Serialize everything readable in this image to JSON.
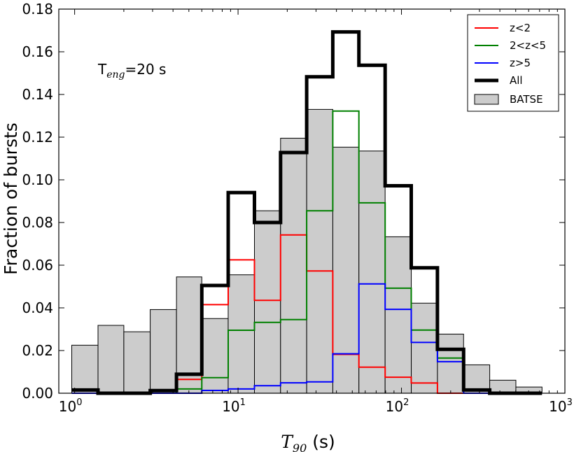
{
  "chart_data": {
    "type": "histogram",
    "xscale": "log",
    "xlim": [
      0.8,
      1000
    ],
    "ylim": [
      0,
      0.18
    ],
    "yticks": [
      "0.00",
      "0.02",
      "0.04",
      "0.06",
      "0.08",
      "0.10",
      "0.12",
      "0.14",
      "0.16",
      "0.18"
    ],
    "xtick_base": "10",
    "xtick_exps": [
      "0",
      "1",
      "2",
      "3"
    ],
    "xlabel": {
      "symbol": "T",
      "sub": "90",
      "unit": "(s)"
    },
    "ylabel": "Fraction of bursts",
    "annotation": {
      "T": "T",
      "sub": "eng",
      "rest": "=20 s"
    },
    "legend_position": "top-right",
    "bin_edges": [
      0.96,
      1.39,
      2.0,
      2.9,
      4.2,
      6.0,
      8.7,
      12.6,
      18.2,
      26.3,
      38.0,
      54.9,
      79.4,
      114.8,
      166.0,
      239.9,
      346.7,
      501.2,
      724.4
    ],
    "batse": {
      "name": "BATSE",
      "color": "#cccccc",
      "values": [
        0.0225,
        0.0318,
        0.0288,
        0.0392,
        0.0545,
        0.035,
        0.0555,
        0.0855,
        0.1195,
        0.133,
        0.1153,
        0.1135,
        0.0733,
        0.0422,
        0.0277,
        0.0133,
        0.0061,
        0.0029
      ]
    },
    "series": [
      {
        "name": "z<2",
        "color": "#ff0000",
        "width": 2,
        "values": [
          0.0,
          0.0,
          0.0,
          0.0,
          0.0065,
          0.0415,
          0.0625,
          0.0435,
          0.0742,
          0.0573,
          0.0182,
          0.0122,
          0.0075,
          0.0048,
          0.0,
          0.0,
          0.0,
          0.0
        ]
      },
      {
        "name": "2<z<5",
        "color": "#008000",
        "width": 2,
        "values": [
          0.0,
          0.0,
          0.0,
          0.0,
          0.002,
          0.0073,
          0.0295,
          0.0332,
          0.0345,
          0.0855,
          0.1322,
          0.0892,
          0.0492,
          0.0296,
          0.0165,
          0.0,
          0.0,
          0.0
        ]
      },
      {
        "name": "z>5",
        "color": "#0000ff",
        "width": 2,
        "values": [
          0.0,
          0.0,
          0.0,
          0.0,
          0.0,
          0.0013,
          0.002,
          0.0035,
          0.0049,
          0.0053,
          0.0185,
          0.0512,
          0.0393,
          0.0238,
          0.0148,
          0.0,
          0.0,
          0.0
        ]
      },
      {
        "name": "All",
        "color": "#000000",
        "width": 5,
        "values": [
          0.0015,
          0.0,
          0.0,
          0.0012,
          0.0089,
          0.0505,
          0.094,
          0.08,
          0.1128,
          0.1483,
          0.1693,
          0.1537,
          0.0972,
          0.0588,
          0.0206,
          0.0015,
          0.0,
          0.0
        ]
      }
    ],
    "legend_entries": [
      "z<2",
      "2<z<5",
      "z>5",
      "All",
      "BATSE"
    ]
  }
}
